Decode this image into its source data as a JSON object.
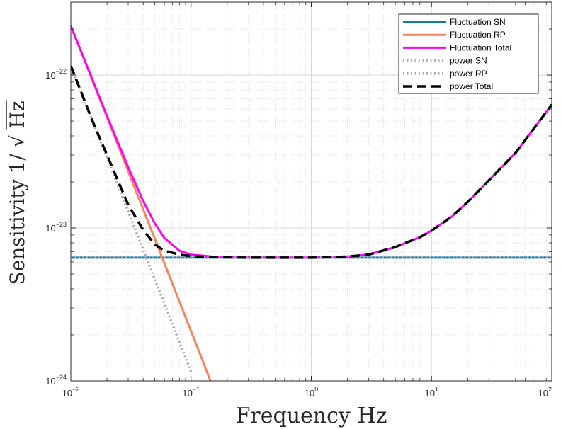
{
  "chart_data": {
    "type": "line",
    "xscale": "log",
    "yscale": "log",
    "xlim": [
      0.01,
      100
    ],
    "ylim": [
      1e-24,
      3e-22
    ],
    "grid": true,
    "minor_grid": true,
    "xlabel": "Frequency Hz",
    "ylabel": {
      "prefix": "Sensitivity 1/",
      "radicand": "Hz"
    },
    "x_ticks": [
      {
        "value": 0.01,
        "base": "10",
        "exp": "−2"
      },
      {
        "value": 0.1,
        "base": "10",
        "exp": "−1"
      },
      {
        "value": 1,
        "base": "10",
        "exp": "0"
      },
      {
        "value": 10,
        "base": "10",
        "exp": "1"
      },
      {
        "value": 100,
        "base": "10",
        "exp": "2"
      }
    ],
    "y_ticks": [
      {
        "value": 1e-24,
        "base": "10",
        "exp": "−24"
      },
      {
        "value": 1e-23,
        "base": "10",
        "exp": "−23"
      },
      {
        "value": 1e-22,
        "base": "10",
        "exp": "−22"
      }
    ],
    "legend": {
      "position": "top-right"
    },
    "series": [
      {
        "name": "Fluctuation SN",
        "color": "#0e7bb0",
        "style": "solid",
        "x": [
          0.01,
          0.1,
          1,
          10,
          100
        ],
        "y": [
          6.4e-24,
          6.4e-24,
          6.4e-24,
          6.4e-24,
          6.4e-24
        ]
      },
      {
        "name": "Fluctuation RP",
        "color": "#f4845a",
        "style": "solid",
        "x": [
          0.01,
          0.02,
          0.03,
          0.05,
          0.08,
          0.12,
          0.15
        ],
        "y": [
          2.1e-22,
          5.3e-23,
          2.35e-23,
          8.5e-24,
          3.3e-24,
          1.47e-24,
          9.3e-25
        ]
      },
      {
        "name": "Fluctuation Total",
        "color": "#ff00ff",
        "style": "solid",
        "x": [
          0.01,
          0.015,
          0.02,
          0.03,
          0.04,
          0.05,
          0.06,
          0.08,
          0.1,
          0.15,
          0.3,
          1,
          2,
          3,
          5,
          8,
          10,
          15,
          20,
          30,
          50,
          100
        ],
        "y": [
          2.1e-22,
          9.5e-23,
          5.4e-23,
          2.5e-23,
          1.5e-23,
          1.07e-23,
          8.6e-24,
          7.1e-24,
          6.7e-24,
          6.5e-24,
          6.42e-24,
          6.4e-24,
          6.5e-24,
          6.7e-24,
          7.5e-24,
          8.7e-24,
          9.6e-24,
          1.2e-23,
          1.48e-23,
          2.05e-23,
          3.1e-23,
          6.4e-23
        ]
      },
      {
        "name": "power SN",
        "color": "#b0b0b0",
        "style": "dotted",
        "x": [
          0.01,
          0.1,
          1,
          10,
          100
        ],
        "y": [
          6.4e-24,
          6.4e-24,
          6.4e-24,
          6.4e-24,
          6.4e-24
        ]
      },
      {
        "name": "power RP",
        "color": "#a8a8a8",
        "style": "dotted",
        "x": [
          0.01,
          0.015,
          0.02,
          0.03,
          0.04,
          0.05,
          0.06,
          0.08,
          0.1
        ],
        "y": [
          1.15e-22,
          5.1e-23,
          2.9e-23,
          1.28e-23,
          7.2e-24,
          4.6e-24,
          3.2e-24,
          1.8e-24,
          1.15e-24
        ]
      },
      {
        "name": "power Total",
        "color": "#000000",
        "style": "dashed",
        "x": [
          0.01,
          0.015,
          0.02,
          0.03,
          0.04,
          0.05,
          0.06,
          0.08,
          0.1,
          0.15,
          0.3,
          1,
          2,
          3,
          5,
          8,
          10,
          15,
          20,
          30,
          50,
          100
        ],
        "y": [
          1.15e-22,
          5.1e-23,
          3e-23,
          1.42e-23,
          9.7e-24,
          7.8e-24,
          7.1e-24,
          6.7e-24,
          6.55e-24,
          6.45e-24,
          6.4e-24,
          6.4e-24,
          6.5e-24,
          6.7e-24,
          7.5e-24,
          8.7e-24,
          9.6e-24,
          1.2e-23,
          1.48e-23,
          2.05e-23,
          3.1e-23,
          6.4e-23
        ]
      }
    ]
  }
}
